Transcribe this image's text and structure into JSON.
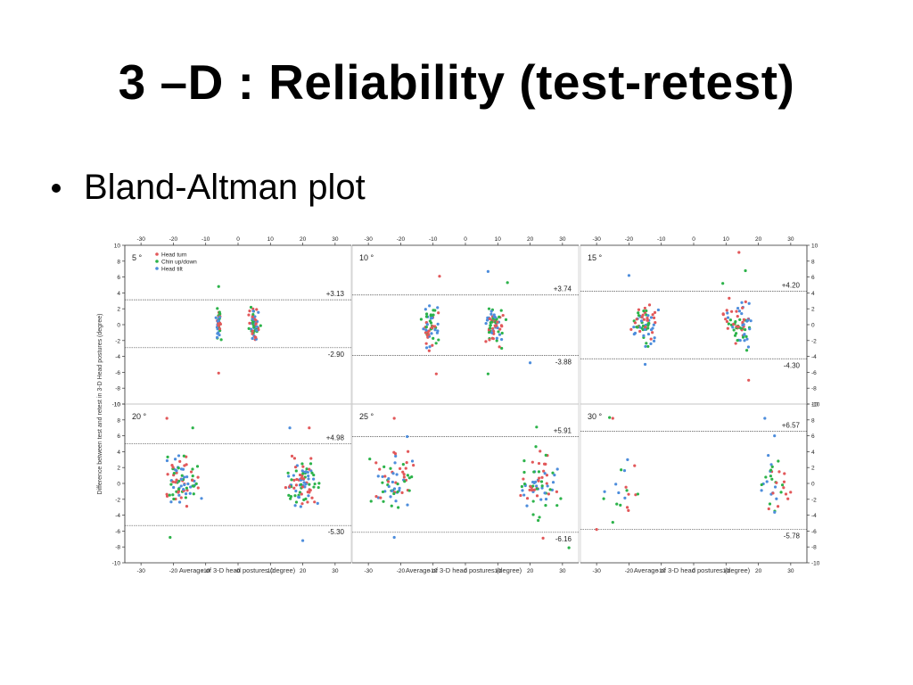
{
  "slide": {
    "title": "3 –D : Reliability (test-retest)",
    "bullet": "Bland-Altman plot"
  },
  "colors": {
    "head_turn": "#e2585a",
    "chin": "#2cb34a",
    "tilt": "#4d8ddc"
  },
  "chart_data": {
    "type": "scatter",
    "ylabel": "Difference between test and retest in 3-D Head postures (degree)",
    "xlabel": "Average of 3-D head postures (degree)",
    "xlim": [
      -35,
      35
    ],
    "ylim": [
      -10,
      10
    ],
    "xticks": [
      -30,
      -20,
      -10,
      0,
      10,
      20,
      30
    ],
    "yticks": [
      -10,
      -8,
      -6,
      -4,
      -2,
      0,
      2,
      4,
      6,
      8,
      10
    ],
    "legend": [
      "Head turn",
      "Chin up/down",
      "Head tilt"
    ],
    "panels": [
      {
        "label": "5 °",
        "upper": 3.13,
        "lower": -2.9,
        "upper_label": "+3.13",
        "lower_label": "-2.90",
        "clusters": [
          {
            "x": -6,
            "spread": 1.3,
            "n": 45
          },
          {
            "x": 5,
            "spread": 2.2,
            "n": 55
          }
        ],
        "points": [
          [
            -6,
            -6.1
          ],
          [
            -6,
            4.8
          ]
        ]
      },
      {
        "label": "10 °",
        "upper": 3.74,
        "lower": -3.88,
        "upper_label": "+3.74",
        "lower_label": "-3.88",
        "clusters": [
          {
            "x": -11,
            "spread": 3.5,
            "n": 60
          },
          {
            "x": 9,
            "spread": 4.5,
            "n": 70
          }
        ],
        "points": [
          [
            -9,
            -6.2
          ],
          [
            7,
            -6.2
          ],
          [
            7,
            6.7
          ],
          [
            -8,
            6.1
          ],
          [
            13,
            5.3
          ],
          [
            20,
            -4.8
          ]
        ]
      },
      {
        "label": "15 °",
        "upper": 4.2,
        "lower": -4.3,
        "upper_label": "+4.20",
        "lower_label": "-4.30",
        "clusters": [
          {
            "x": -15,
            "spread": 5,
            "n": 70
          },
          {
            "x": 14,
            "spread": 6,
            "n": 70
          }
        ],
        "points": [
          [
            14,
            9.1
          ],
          [
            16,
            6.8
          ],
          [
            -20,
            6.2
          ],
          [
            17,
            -7
          ],
          [
            9,
            5.2
          ],
          [
            -15,
            -5
          ]
        ]
      },
      {
        "label": "20 °",
        "upper": 4.98,
        "lower": -5.3,
        "upper_label": "+4.98",
        "lower_label": "-5.30",
        "clusters": [
          {
            "x": -18,
            "spread": 8,
            "n": 85
          },
          {
            "x": 20,
            "spread": 8,
            "n": 85
          }
        ],
        "points": [
          [
            -22,
            8.2
          ],
          [
            -14,
            7
          ],
          [
            16,
            7
          ],
          [
            22,
            7
          ],
          [
            -21,
            -6.8
          ],
          [
            20,
            -7.2
          ]
        ]
      },
      {
        "label": "25 °",
        "upper": 5.91,
        "lower": -6.16,
        "upper_label": "+5.91",
        "lower_label": "-6.16",
        "clusters": [
          {
            "x": -22,
            "spread": 9,
            "n": 65
          },
          {
            "x": 23,
            "spread": 8,
            "n": 70
          }
        ],
        "points": [
          [
            -22,
            8.2
          ],
          [
            22,
            7.1
          ],
          [
            -22,
            -6.8
          ],
          [
            24,
            -6.9
          ],
          [
            32,
            -8.1
          ],
          [
            -18,
            5.9
          ]
        ]
      },
      {
        "label": "30 °",
        "upper": 6.57,
        "lower": -5.78,
        "upper_label": "+6.57",
        "lower_label": "-5.78",
        "clusters": [
          {
            "x": -22,
            "spread": 8,
            "n": 18
          },
          {
            "x": 25,
            "spread": 6,
            "n": 35
          }
        ],
        "points": [
          [
            -25,
            8.2
          ],
          [
            -26,
            8.3
          ],
          [
            22,
            8.2
          ],
          [
            -30,
            -5.8
          ],
          [
            -25,
            -4.9
          ],
          [
            25,
            6
          ]
        ]
      }
    ]
  }
}
